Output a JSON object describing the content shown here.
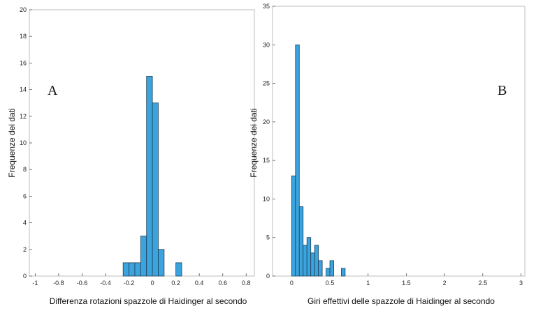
{
  "chart_data": [
    {
      "type": "bar",
      "panel_label": "A",
      "title": "",
      "xlabel": "Differenza rotazioni spazzole di Haidinger al secondo",
      "ylabel": "Frequenze dei dati",
      "xlim": [
        -1.05,
        0.87
      ],
      "ylim": [
        0,
        20
      ],
      "xticks": [
        -1,
        -0.8,
        -0.6,
        -0.4,
        -0.2,
        0,
        0.2,
        0.4,
        0.6,
        0.8
      ],
      "yticks": [
        0,
        2,
        4,
        6,
        8,
        10,
        12,
        14,
        16,
        18,
        20
      ],
      "bin_width": 0.05,
      "bins_left": [
        -0.25,
        -0.2,
        -0.15,
        -0.1,
        -0.05,
        0.0,
        0.05,
        0.1,
        0.15,
        0.2
      ],
      "counts": [
        1,
        1,
        1,
        3,
        15,
        13,
        2,
        0,
        0,
        1
      ],
      "bar_color": "#3ba3dd",
      "grid": false
    },
    {
      "type": "bar",
      "panel_label": "B",
      "title": "",
      "xlabel": "Giri effettivi delle spazzole di Haidinger al secondo",
      "ylabel": "Frequenze dei dati",
      "xlim": [
        -0.25,
        3.05
      ],
      "ylim": [
        0,
        35
      ],
      "xticks": [
        0,
        0.5,
        1,
        1.5,
        2,
        2.5,
        3
      ],
      "yticks": [
        0,
        5,
        10,
        15,
        20,
        25,
        30,
        35
      ],
      "bin_width": 0.05,
      "bins_left": [
        0.0,
        0.05,
        0.1,
        0.15,
        0.2,
        0.25,
        0.3,
        0.35,
        0.4,
        0.45,
        0.5,
        0.55,
        0.6,
        0.65
      ],
      "counts": [
        13,
        30,
        9,
        4,
        5,
        3,
        4,
        2,
        0,
        1,
        2,
        0,
        0,
        1
      ],
      "bar_color": "#3ba3dd",
      "grid": false
    }
  ]
}
